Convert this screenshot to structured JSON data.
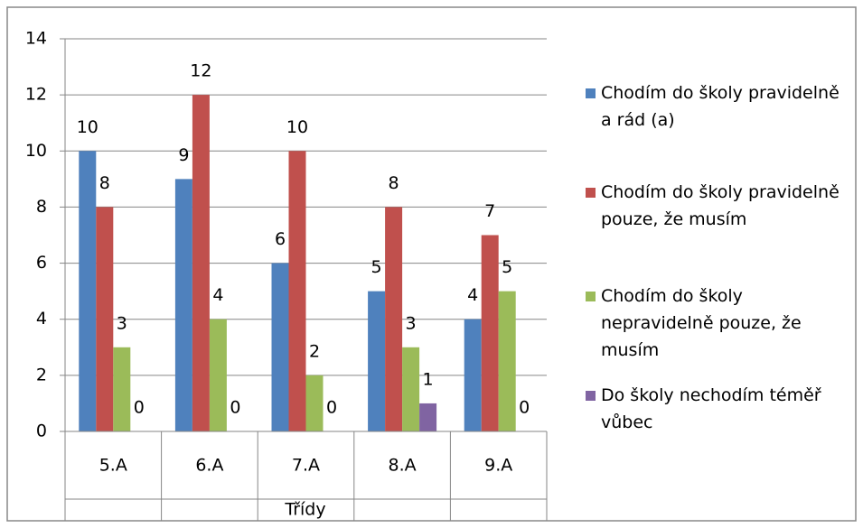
{
  "chart_data": {
    "type": "bar",
    "categories": [
      "5.A",
      "6.A",
      "7.A",
      "8.A",
      "9.A"
    ],
    "x_label": "Třídy",
    "series": [
      {
        "name": "Chodím do školy pravidelně a rád (a)",
        "color": "#4f81bd",
        "values": [
          10,
          9,
          6,
          5,
          4
        ]
      },
      {
        "name": "Chodím do školy pravidelně pouze, že musím",
        "color": "#c0504d",
        "values": [
          8,
          12,
          10,
          8,
          7
        ]
      },
      {
        "name": "Chodím do školy nepravidelně pouze, že musím",
        "color": "#9bbb59",
        "values": [
          3,
          4,
          2,
          3,
          5
        ]
      },
      {
        "name": "Do školy nechodím téměř vůbec",
        "color": "#8064a2",
        "values": [
          0,
          0,
          0,
          1,
          0
        ]
      }
    ],
    "ylim": [
      0,
      14
    ],
    "yticks": [
      0,
      2,
      4,
      6,
      8,
      10,
      12,
      14
    ],
    "grid": true,
    "legend": "right"
  }
}
